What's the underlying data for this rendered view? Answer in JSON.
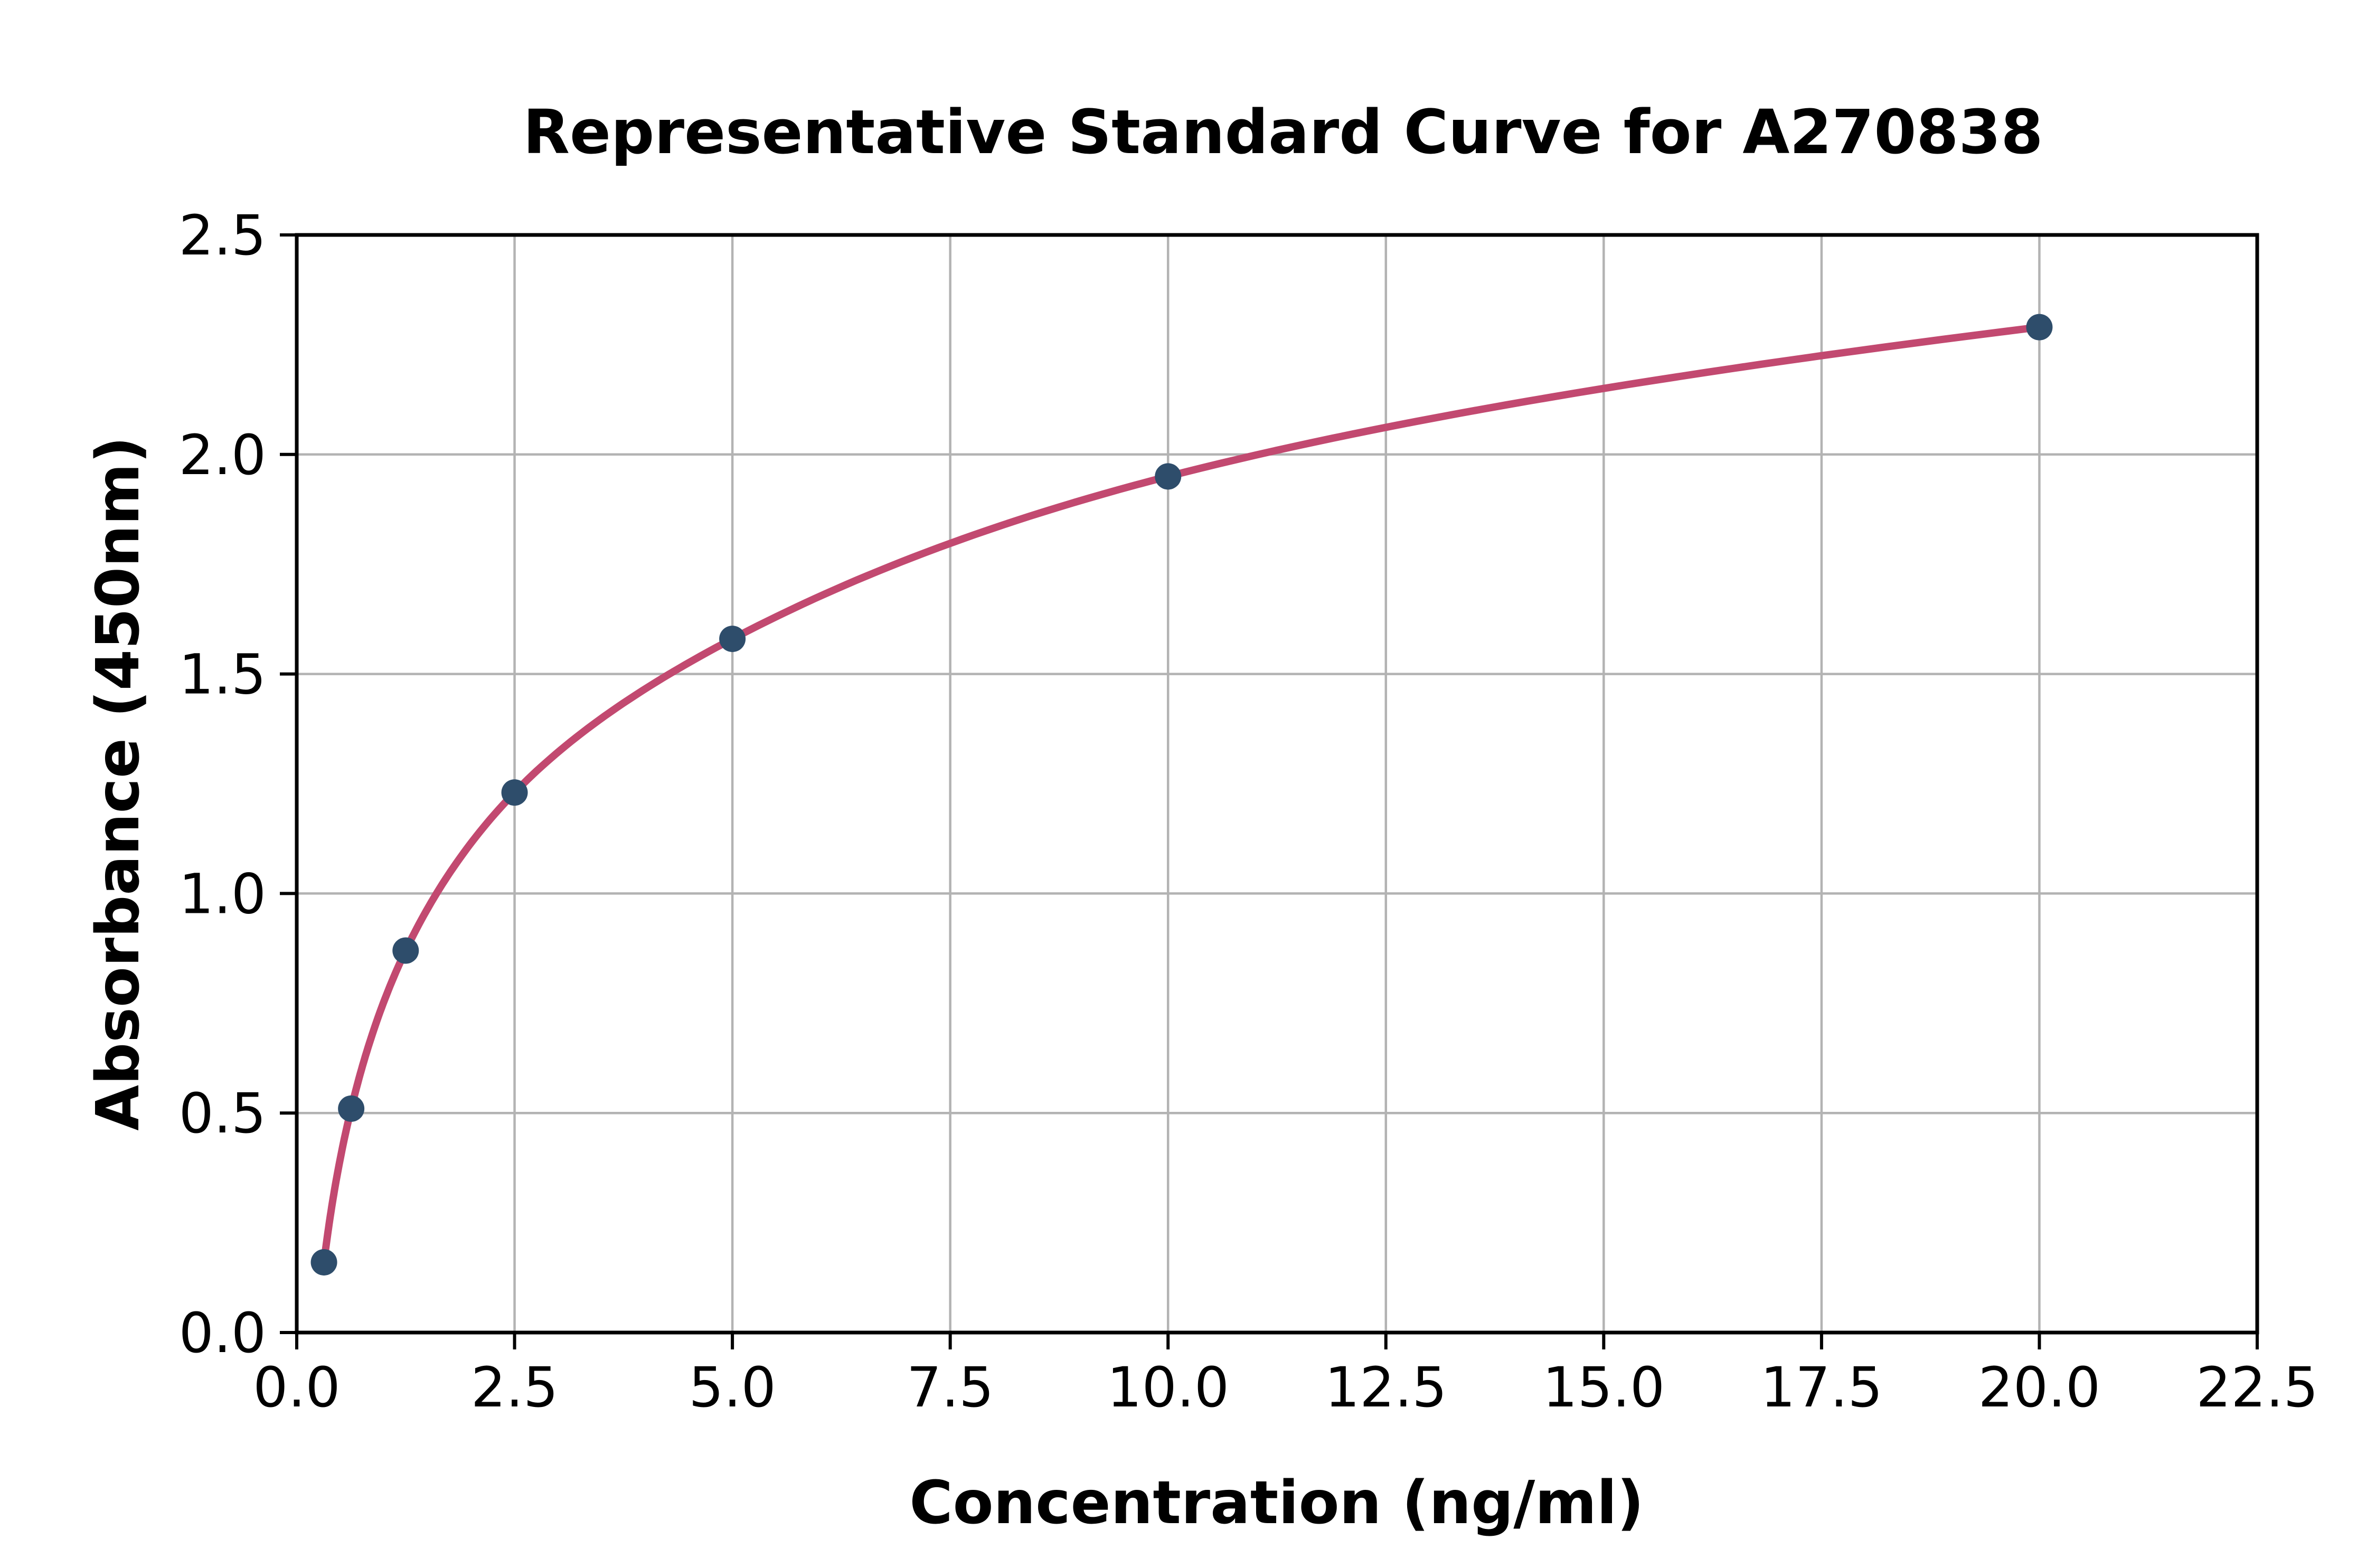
{
  "chart_data": {
    "type": "line",
    "title": "Representative Standard Curve for A270838",
    "xlabel": "Concentration (ng/ml)",
    "ylabel": "Absorbance (450nm)",
    "x": [
      0.3125,
      0.625,
      1.25,
      2.5,
      5,
      10,
      20
    ],
    "y": [
      0.16,
      0.51,
      0.87,
      1.23,
      1.58,
      1.95,
      2.29
    ],
    "xlim": [
      0,
      22.5
    ],
    "ylim": [
      0,
      2.5
    ],
    "xticks": [
      0,
      2.5,
      5,
      7.5,
      10,
      12.5,
      15,
      17.5,
      20,
      22.5
    ],
    "xtick_labels": [
      "0.0",
      "2.5",
      "5.0",
      "7.5",
      "10.0",
      "12.5",
      "15.0",
      "17.5",
      "20.0",
      "22.5"
    ],
    "yticks": [
      0,
      0.5,
      1,
      1.5,
      2,
      2.5
    ],
    "ytick_labels": [
      "0.0",
      "0.5",
      "1.0",
      "1.5",
      "2.0",
      "2.5"
    ],
    "grid": true,
    "legend_position": "none",
    "marker_shape": "circle",
    "interpolation": "smooth-in-log2-x",
    "colors": {
      "line": "#c24970",
      "marker": "#2e4d6b",
      "grid": "#b3b3b3",
      "axis": "#000000",
      "background": "#ffffff"
    }
  }
}
